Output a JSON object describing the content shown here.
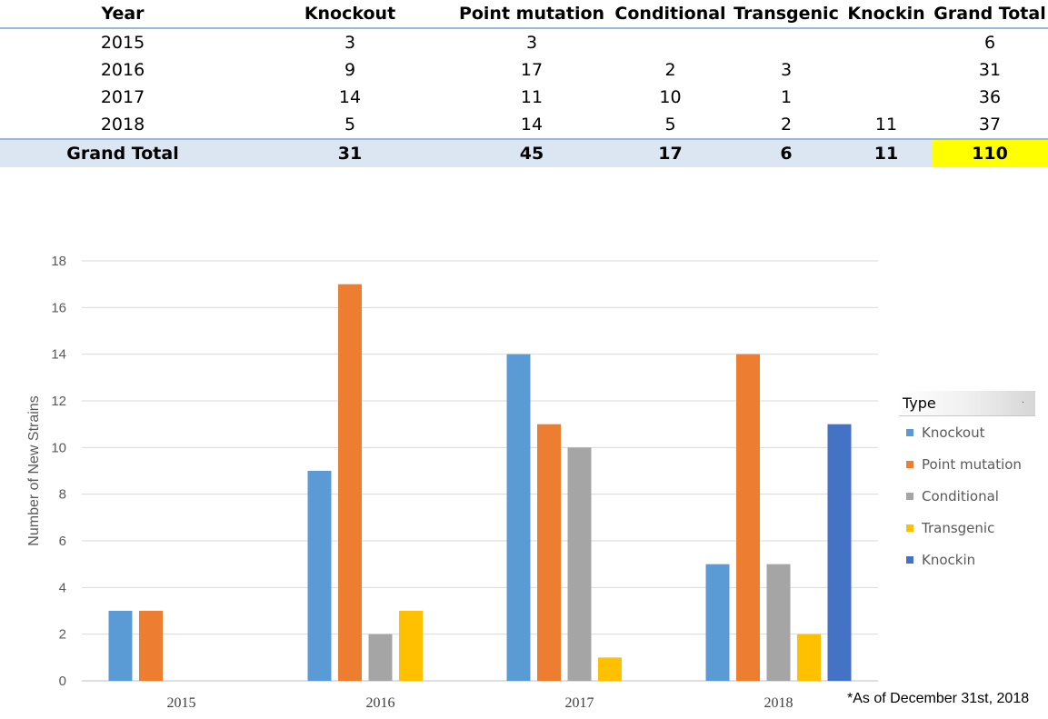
{
  "table": {
    "header": {
      "year": "Year",
      "types": [
        "Knockout",
        "Point mutation",
        "Conditional",
        "Transgenic",
        "Knockin"
      ],
      "grand_total": "Grand Total"
    },
    "rows": [
      {
        "year": "2015",
        "cells": [
          "3",
          "3",
          "",
          "",
          ""
        ],
        "total": "6"
      },
      {
        "year": "2016",
        "cells": [
          "9",
          "17",
          "2",
          "3",
          ""
        ],
        "total": "31"
      },
      {
        "year": "2017",
        "cells": [
          "14",
          "11",
          "10",
          "1",
          ""
        ],
        "total": "36"
      },
      {
        "year": "2018",
        "cells": [
          "5",
          "14",
          "5",
          "2",
          "11"
        ],
        "total": "37"
      }
    ],
    "totals": {
      "label": "Grand Total",
      "cells": [
        "31",
        "45",
        "17",
        "6",
        "11"
      ],
      "grand": "110"
    },
    "highlight_color": "#ffff00"
  },
  "chart_data": {
    "type": "bar",
    "categories": [
      "2015",
      "2016",
      "2017",
      "2018"
    ],
    "series": [
      {
        "name": "Knockout",
        "values": [
          3,
          9,
          14,
          5
        ],
        "color": "#5b9bd5"
      },
      {
        "name": "Point mutation",
        "values": [
          3,
          17,
          11,
          14
        ],
        "color": "#ed7d31"
      },
      {
        "name": "Conditional",
        "values": [
          0,
          2,
          10,
          5
        ],
        "color": "#a5a5a5"
      },
      {
        "name": "Transgenic",
        "values": [
          0,
          3,
          1,
          2
        ],
        "color": "#ffc000"
      },
      {
        "name": "Knockin",
        "values": [
          0,
          0,
          0,
          11
        ],
        "color": "#4472c4"
      }
    ],
    "ylabel": "Number of New Strains",
    "ylim": [
      0,
      18
    ],
    "yticks": [
      0,
      2,
      4,
      6,
      8,
      10,
      12,
      14,
      16,
      18
    ],
    "grid": true,
    "legend": {
      "title": "Type",
      "placement": "right"
    }
  },
  "footnote": "*As of December 31st, 2018"
}
